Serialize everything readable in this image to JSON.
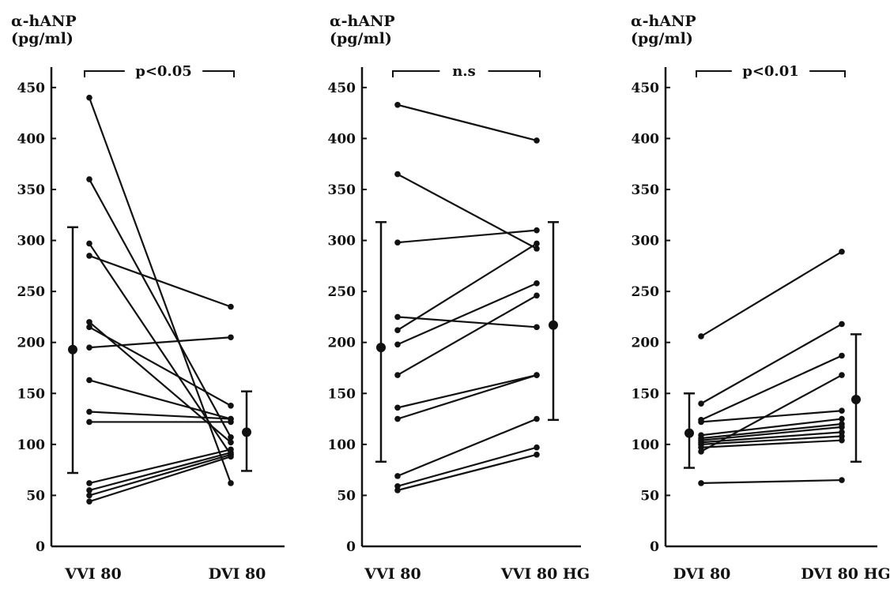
{
  "chart_data": [
    {
      "type": "line",
      "ylabel": "α-hANP",
      "yunit": "(pg/ml)",
      "ylim": [
        0,
        470
      ],
      "yticks": [
        0,
        50,
        100,
        150,
        200,
        250,
        300,
        350,
        400,
        450
      ],
      "categories": [
        "VVI 80",
        "DVI 80"
      ],
      "significance": "p<0.05",
      "pairs": [
        [
          440,
          62
        ],
        [
          360,
          107
        ],
        [
          297,
          90
        ],
        [
          285,
          235
        ],
        [
          220,
          102
        ],
        [
          215,
          138
        ],
        [
          195,
          205
        ],
        [
          163,
          125
        ],
        [
          132,
          125
        ],
        [
          122,
          122
        ],
        [
          62,
          95
        ],
        [
          55,
          92
        ],
        [
          50,
          90
        ],
        [
          44,
          88
        ]
      ],
      "summary": [
        {
          "mean": 193,
          "upper": 313,
          "lower": 72
        },
        {
          "mean": 112,
          "upper": 152,
          "lower": 74
        }
      ]
    },
    {
      "type": "line",
      "ylabel": "α-hANP",
      "yunit": "(pg/ml)",
      "ylim": [
        0,
        470
      ],
      "yticks": [
        0,
        50,
        100,
        150,
        200,
        250,
        300,
        350,
        400,
        450
      ],
      "categories": [
        "VVI 80",
        "VVI 80 HG"
      ],
      "significance": "n.s",
      "pairs": [
        [
          433,
          398
        ],
        [
          365,
          292
        ],
        [
          298,
          310
        ],
        [
          225,
          215
        ],
        [
          212,
          297
        ],
        [
          198,
          258
        ],
        [
          168,
          246
        ],
        [
          136,
          168
        ],
        [
          125,
          168
        ],
        [
          69,
          125
        ],
        [
          59,
          97
        ],
        [
          55,
          90
        ]
      ],
      "summary": [
        {
          "mean": 195,
          "upper": 318,
          "lower": 83
        },
        {
          "mean": 217,
          "upper": 318,
          "lower": 124
        }
      ]
    },
    {
      "type": "line",
      "ylabel": "α-hANP",
      "yunit": "(pg/ml)",
      "ylim": [
        0,
        470
      ],
      "yticks": [
        0,
        50,
        100,
        150,
        200,
        250,
        300,
        350,
        400,
        450
      ],
      "categories": [
        "DVI 80",
        "DVI 80 HG"
      ],
      "significance": "p<0.01",
      "pairs": [
        [
          206,
          289
        ],
        [
          140,
          218
        ],
        [
          124,
          187
        ],
        [
          122,
          133
        ],
        [
          109,
          125
        ],
        [
          106,
          120
        ],
        [
          104,
          117
        ],
        [
          102,
          112
        ],
        [
          100,
          108
        ],
        [
          97,
          104
        ],
        [
          93,
          168
        ],
        [
          62,
          65
        ]
      ],
      "summary": [
        {
          "mean": 111,
          "upper": 150,
          "lower": 77
        },
        {
          "mean": 144,
          "upper": 208,
          "lower": 83
        }
      ]
    }
  ]
}
